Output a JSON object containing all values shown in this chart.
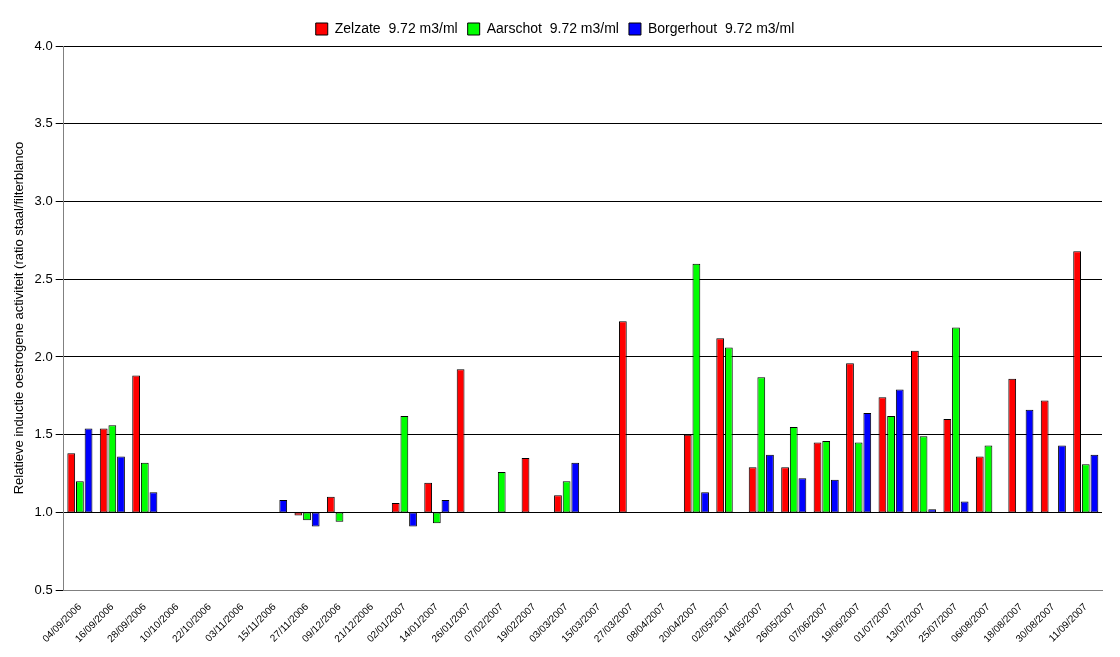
{
  "chart_data": {
    "type": "bar",
    "ylabel": "Relatieve inductie oestrogene activiteit (ratio staal/filterblanco",
    "categories": [
      "04/09/2006",
      "16/09/2006",
      "28/09/2006",
      "10/10/2006",
      "22/10/2006",
      "03/11/2006",
      "15/11/2006",
      "27/11/2006",
      "09/12/2006",
      "21/12/2006",
      "02/01/2007",
      "14/01/2007",
      "26/01/2007",
      "07/02/2007",
      "19/02/2007",
      "03/03/2007",
      "15/03/2007",
      "27/03/2007",
      "08/04/2007",
      "20/04/2007",
      "02/05/2007",
      "14/05/2007",
      "26/05/2007",
      "07/06/2007",
      "19/06/2007",
      "01/07/2007",
      "13/07/2007",
      "25/07/2007",
      "06/08/2007",
      "18/08/2007",
      "30/08/2007",
      "11/09/2007"
    ],
    "series": [
      {
        "name": "Zelzate  9.72 m3/ml",
        "color": "#ff0000",
        "values": [
          0.38,
          0.54,
          0.88,
          null,
          null,
          null,
          null,
          -0.02,
          0.1,
          null,
          0.06,
          0.19,
          0.92,
          null,
          0.35,
          0.11,
          null,
          1.23,
          null,
          0.5,
          1.12,
          0.29,
          0.29,
          0.45,
          0.96,
          0.74,
          1.04,
          0.6,
          0.36,
          0.86,
          0.72,
          1.68
        ],
        "base": [
          1,
          1,
          1,
          null,
          null,
          null,
          null,
          1,
          1,
          null,
          1,
          1,
          1,
          null,
          1,
          1,
          null,
          1,
          null,
          1,
          1,
          1,
          1,
          1,
          1,
          1,
          1,
          1,
          1,
          1,
          1,
          1
        ]
      },
      {
        "name": "Aarschot  9.72 m3/ml",
        "color": "#00ff00",
        "values": [
          0.2,
          0.56,
          0.32,
          null,
          null,
          null,
          null,
          -0.05,
          -0.06,
          null,
          0.62,
          -0.07,
          null,
          0.26,
          null,
          0.2,
          null,
          null,
          null,
          1.6,
          1.06,
          0.87,
          0.55,
          0.46,
          0.45,
          0.62,
          0.49,
          1.19,
          0.43,
          null,
          null,
          0.31
        ],
        "base": [
          1,
          1,
          1,
          null,
          null,
          null,
          null,
          1,
          1,
          null,
          1,
          1,
          null,
          1,
          null,
          1,
          null,
          null,
          null,
          1,
          1,
          1,
          1,
          1,
          1,
          1,
          1,
          1,
          1,
          null,
          null,
          1
        ]
      },
      {
        "name": "Borgerhout  9.72 m3/ml",
        "color": "#0000ff",
        "values": [
          0.54,
          0.36,
          0.13,
          null,
          null,
          null,
          0.08,
          -0.09,
          null,
          null,
          -0.09,
          0.08,
          null,
          null,
          null,
          0.32,
          null,
          null,
          null,
          0.13,
          null,
          0.37,
          0.22,
          0.21,
          0.64,
          0.79,
          0.02,
          0.07,
          null,
          0.66,
          0.43,
          0.37
        ],
        "base": [
          1,
          1,
          1,
          null,
          null,
          null,
          1,
          1,
          null,
          null,
          1,
          1,
          null,
          null,
          null,
          1,
          null,
          null,
          null,
          1,
          null,
          1,
          1,
          1,
          1,
          1,
          1,
          1,
          null,
          1,
          1,
          1
        ]
      }
    ],
    "ylim": [
      0.5,
      4.0
    ],
    "yticks": [
      {
        "value": 0.5,
        "label": "0.5"
      },
      {
        "value": 1,
        "label": "1.0"
      },
      {
        "value": 1.5,
        "label": "1.5"
      },
      {
        "value": 2,
        "label": "2.0"
      },
      {
        "value": 2.5,
        "label": "2.5"
      },
      {
        "value": 3,
        "label": "3.0"
      },
      {
        "value": 3.5,
        "label": "3.5"
      },
      {
        "value": 4,
        "label": "4.0"
      }
    ],
    "grid": "y",
    "legend": "top"
  }
}
